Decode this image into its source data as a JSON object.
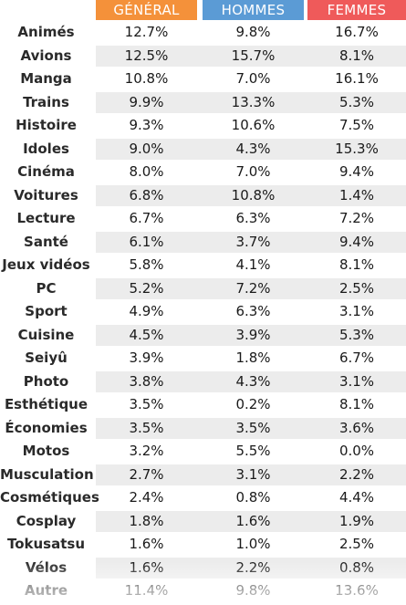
{
  "chart_data": {
    "type": "table",
    "columns": [
      "GÉNÉRAL",
      "HOMMES",
      "FEMMES"
    ],
    "column_colors": [
      "#f4913a",
      "#5b9bd5",
      "#ef5a5a"
    ],
    "rows": [
      {
        "label": "Animés",
        "values": [
          "12.7%",
          "9.8%",
          "16.7%"
        ]
      },
      {
        "label": "Avions",
        "values": [
          "12.5%",
          "15.7%",
          "8.1%"
        ]
      },
      {
        "label": "Manga",
        "values": [
          "10.8%",
          "7.0%",
          "16.1%"
        ]
      },
      {
        "label": "Trains",
        "values": [
          "9.9%",
          "13.3%",
          "5.3%"
        ]
      },
      {
        "label": "Histoire",
        "values": [
          "9.3%",
          "10.6%",
          "7.5%"
        ]
      },
      {
        "label": "Idoles",
        "values": [
          "9.0%",
          "4.3%",
          "15.3%"
        ]
      },
      {
        "label": "Cinéma",
        "values": [
          "8.0%",
          "7.0%",
          "9.4%"
        ]
      },
      {
        "label": "Voitures",
        "values": [
          "6.8%",
          "10.8%",
          "1.4%"
        ]
      },
      {
        "label": "Lecture",
        "values": [
          "6.7%",
          "6.3%",
          "7.2%"
        ]
      },
      {
        "label": "Santé",
        "values": [
          "6.1%",
          "3.7%",
          "9.4%"
        ]
      },
      {
        "label": "Jeux vidéos",
        "values": [
          "5.8%",
          "4.1%",
          "8.1%"
        ]
      },
      {
        "label": "PC",
        "values": [
          "5.2%",
          "7.2%",
          "2.5%"
        ]
      },
      {
        "label": "Sport",
        "values": [
          "4.9%",
          "6.3%",
          "3.1%"
        ]
      },
      {
        "label": "Cuisine",
        "values": [
          "4.5%",
          "3.9%",
          "5.3%"
        ]
      },
      {
        "label": "Seiyû",
        "values": [
          "3.9%",
          "1.8%",
          "6.7%"
        ]
      },
      {
        "label": "Photo",
        "values": [
          "3.8%",
          "4.3%",
          "3.1%"
        ]
      },
      {
        "label": "Esthétique",
        "values": [
          "3.5%",
          "0.2%",
          "8.1%"
        ]
      },
      {
        "label": "Économies",
        "values": [
          "3.5%",
          "3.5%",
          "3.6%"
        ]
      },
      {
        "label": "Motos",
        "values": [
          "3.2%",
          "5.5%",
          "0.0%"
        ]
      },
      {
        "label": "Musculation",
        "values": [
          "2.7%",
          "3.1%",
          "2.2%"
        ]
      },
      {
        "label": "Cosmétiques",
        "values": [
          "2.4%",
          "0.8%",
          "4.4%"
        ]
      },
      {
        "label": "Cosplay",
        "values": [
          "1.8%",
          "1.6%",
          "1.9%"
        ]
      },
      {
        "label": "Tokusatsu",
        "values": [
          "1.6%",
          "1.0%",
          "2.5%"
        ]
      },
      {
        "label": "Vélos",
        "values": [
          "1.6%",
          "2.2%",
          "0.8%"
        ]
      },
      {
        "label": "Autre",
        "values": [
          "11.4%",
          "9.8%",
          "13.6%"
        ]
      }
    ]
  }
}
